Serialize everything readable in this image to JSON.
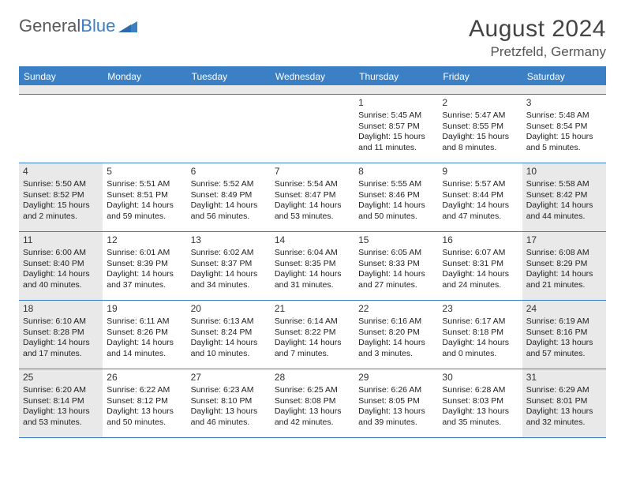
{
  "brand": {
    "part1": "General",
    "part2": "Blue"
  },
  "title": "August 2024",
  "location": "Pretzfeld, Germany",
  "colors": {
    "accent": "#3b7fc4",
    "shaded": "#e9e9e9",
    "text": "#222222",
    "header_text": "#444444"
  },
  "day_headers": [
    "Sunday",
    "Monday",
    "Tuesday",
    "Wednesday",
    "Thursday",
    "Friday",
    "Saturday"
  ],
  "weeks": [
    [
      {
        "blank": true,
        "shaded": false
      },
      {
        "blank": true,
        "shaded": false
      },
      {
        "blank": true,
        "shaded": false
      },
      {
        "blank": true,
        "shaded": false
      },
      {
        "day": 1,
        "shaded": false,
        "sunrise": "5:45 AM",
        "sunset": "8:57 PM",
        "daylight": "15 hours and 11 minutes."
      },
      {
        "day": 2,
        "shaded": false,
        "sunrise": "5:47 AM",
        "sunset": "8:55 PM",
        "daylight": "15 hours and 8 minutes."
      },
      {
        "day": 3,
        "shaded": false,
        "sunrise": "5:48 AM",
        "sunset": "8:54 PM",
        "daylight": "15 hours and 5 minutes."
      }
    ],
    [
      {
        "day": 4,
        "shaded": true,
        "sunrise": "5:50 AM",
        "sunset": "8:52 PM",
        "daylight": "15 hours and 2 minutes."
      },
      {
        "day": 5,
        "shaded": false,
        "sunrise": "5:51 AM",
        "sunset": "8:51 PM",
        "daylight": "14 hours and 59 minutes."
      },
      {
        "day": 6,
        "shaded": false,
        "sunrise": "5:52 AM",
        "sunset": "8:49 PM",
        "daylight": "14 hours and 56 minutes."
      },
      {
        "day": 7,
        "shaded": false,
        "sunrise": "5:54 AM",
        "sunset": "8:47 PM",
        "daylight": "14 hours and 53 minutes."
      },
      {
        "day": 8,
        "shaded": false,
        "sunrise": "5:55 AM",
        "sunset": "8:46 PM",
        "daylight": "14 hours and 50 minutes."
      },
      {
        "day": 9,
        "shaded": false,
        "sunrise": "5:57 AM",
        "sunset": "8:44 PM",
        "daylight": "14 hours and 47 minutes."
      },
      {
        "day": 10,
        "shaded": true,
        "sunrise": "5:58 AM",
        "sunset": "8:42 PM",
        "daylight": "14 hours and 44 minutes."
      }
    ],
    [
      {
        "day": 11,
        "shaded": true,
        "sunrise": "6:00 AM",
        "sunset": "8:40 PM",
        "daylight": "14 hours and 40 minutes."
      },
      {
        "day": 12,
        "shaded": false,
        "sunrise": "6:01 AM",
        "sunset": "8:39 PM",
        "daylight": "14 hours and 37 minutes."
      },
      {
        "day": 13,
        "shaded": false,
        "sunrise": "6:02 AM",
        "sunset": "8:37 PM",
        "daylight": "14 hours and 34 minutes."
      },
      {
        "day": 14,
        "shaded": false,
        "sunrise": "6:04 AM",
        "sunset": "8:35 PM",
        "daylight": "14 hours and 31 minutes."
      },
      {
        "day": 15,
        "shaded": false,
        "sunrise": "6:05 AM",
        "sunset": "8:33 PM",
        "daylight": "14 hours and 27 minutes."
      },
      {
        "day": 16,
        "shaded": false,
        "sunrise": "6:07 AM",
        "sunset": "8:31 PM",
        "daylight": "14 hours and 24 minutes."
      },
      {
        "day": 17,
        "shaded": true,
        "sunrise": "6:08 AM",
        "sunset": "8:29 PM",
        "daylight": "14 hours and 21 minutes."
      }
    ],
    [
      {
        "day": 18,
        "shaded": true,
        "sunrise": "6:10 AM",
        "sunset": "8:28 PM",
        "daylight": "14 hours and 17 minutes."
      },
      {
        "day": 19,
        "shaded": false,
        "sunrise": "6:11 AM",
        "sunset": "8:26 PM",
        "daylight": "14 hours and 14 minutes."
      },
      {
        "day": 20,
        "shaded": false,
        "sunrise": "6:13 AM",
        "sunset": "8:24 PM",
        "daylight": "14 hours and 10 minutes."
      },
      {
        "day": 21,
        "shaded": false,
        "sunrise": "6:14 AM",
        "sunset": "8:22 PM",
        "daylight": "14 hours and 7 minutes."
      },
      {
        "day": 22,
        "shaded": false,
        "sunrise": "6:16 AM",
        "sunset": "8:20 PM",
        "daylight": "14 hours and 3 minutes."
      },
      {
        "day": 23,
        "shaded": false,
        "sunrise": "6:17 AM",
        "sunset": "8:18 PM",
        "daylight": "14 hours and 0 minutes."
      },
      {
        "day": 24,
        "shaded": true,
        "sunrise": "6:19 AM",
        "sunset": "8:16 PM",
        "daylight": "13 hours and 57 minutes."
      }
    ],
    [
      {
        "day": 25,
        "shaded": true,
        "sunrise": "6:20 AM",
        "sunset": "8:14 PM",
        "daylight": "13 hours and 53 minutes."
      },
      {
        "day": 26,
        "shaded": false,
        "sunrise": "6:22 AM",
        "sunset": "8:12 PM",
        "daylight": "13 hours and 50 minutes."
      },
      {
        "day": 27,
        "shaded": false,
        "sunrise": "6:23 AM",
        "sunset": "8:10 PM",
        "daylight": "13 hours and 46 minutes."
      },
      {
        "day": 28,
        "shaded": false,
        "sunrise": "6:25 AM",
        "sunset": "8:08 PM",
        "daylight": "13 hours and 42 minutes."
      },
      {
        "day": 29,
        "shaded": false,
        "sunrise": "6:26 AM",
        "sunset": "8:05 PM",
        "daylight": "13 hours and 39 minutes."
      },
      {
        "day": 30,
        "shaded": false,
        "sunrise": "6:28 AM",
        "sunset": "8:03 PM",
        "daylight": "13 hours and 35 minutes."
      },
      {
        "day": 31,
        "shaded": true,
        "sunrise": "6:29 AM",
        "sunset": "8:01 PM",
        "daylight": "13 hours and 32 minutes."
      }
    ]
  ],
  "labels": {
    "sunrise_prefix": "Sunrise: ",
    "sunset_prefix": "Sunset: ",
    "daylight_prefix": "Daylight: "
  }
}
